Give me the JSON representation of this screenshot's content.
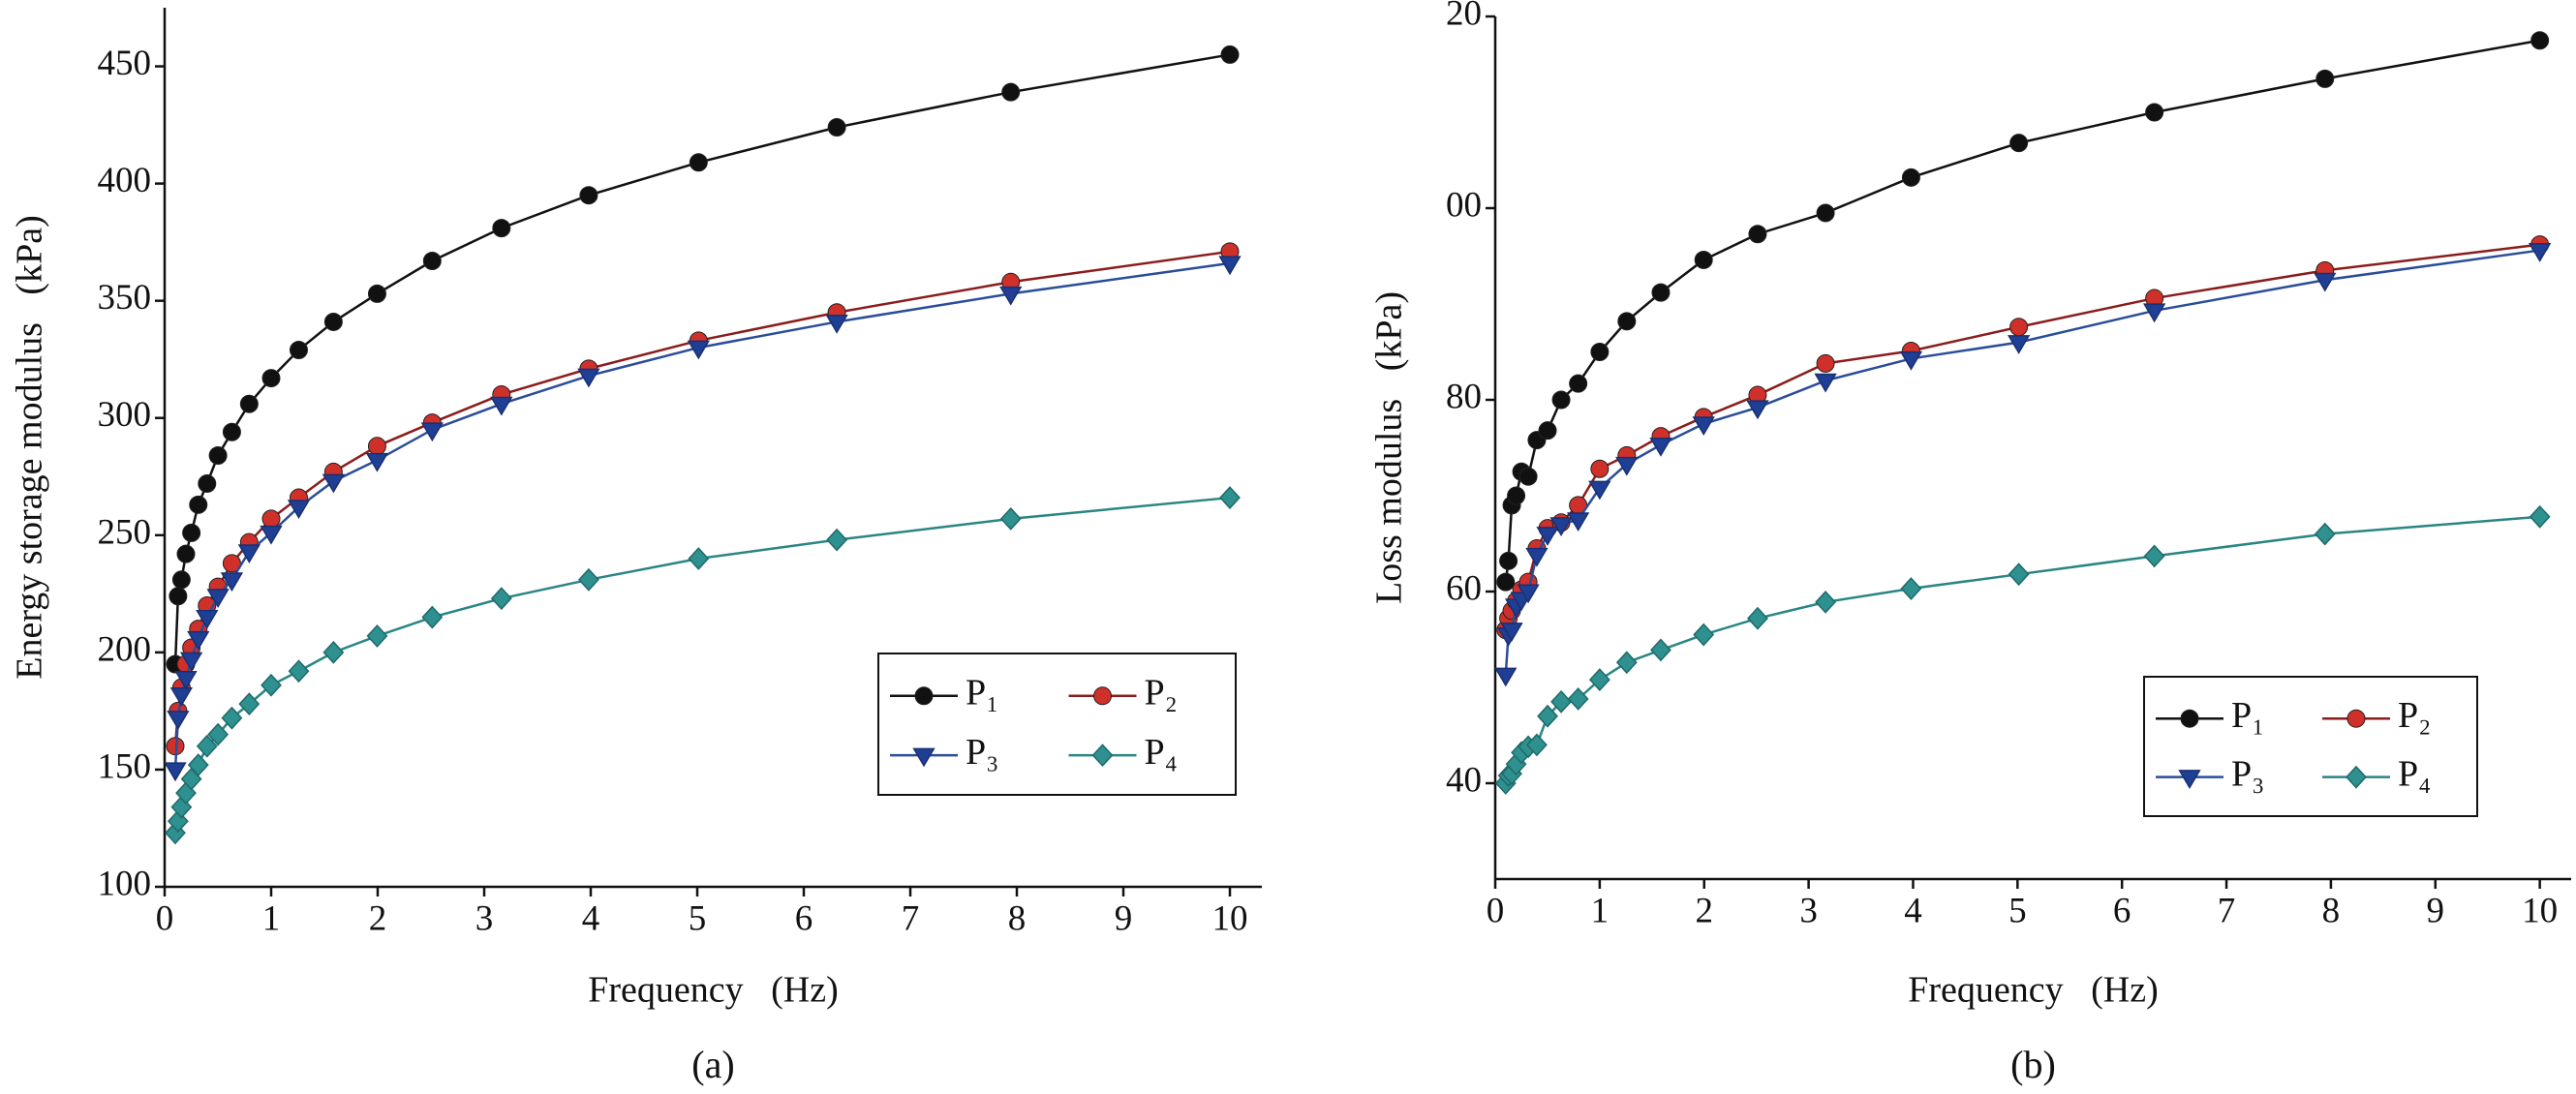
{
  "chart_data": [
    {
      "type": "line",
      "panel_label": "(a)",
      "xlabel": "Frequency   (Hz)",
      "ylabel": "Energy storage modulus   (kPa)",
      "x": [
        0.1,
        0.126,
        0.158,
        0.2,
        0.251,
        0.316,
        0.398,
        0.501,
        0.631,
        0.794,
        1,
        1.259,
        1.585,
        1.995,
        2.512,
        3.162,
        3.981,
        5.012,
        6.31,
        7.943,
        10
      ],
      "xlim": [
        0,
        10.3
      ],
      "xticks": [
        0,
        1,
        2,
        3,
        4,
        5,
        6,
        7,
        8,
        9,
        10
      ],
      "ylim": [
        100,
        475
      ],
      "yticks": [
        100,
        150,
        200,
        250,
        300,
        350,
        400,
        450
      ],
      "legend": "lower right",
      "series": [
        {
          "name": "P₁",
          "color": "#111111",
          "marker_color": "#111111",
          "marker": "circle",
          "values": [
            195,
            224,
            231,
            242,
            251,
            263,
            272,
            284,
            294,
            306,
            317,
            329,
            341,
            353,
            367,
            381,
            395,
            409,
            424,
            439,
            455
          ]
        },
        {
          "name": "P₂",
          "color": "#8b1c1c",
          "marker_color": "#d0302a",
          "marker": "circle",
          "values": [
            160,
            175,
            185,
            195,
            202,
            210,
            220,
            228,
            238,
            247,
            257,
            266,
            277,
            288,
            298,
            310,
            321,
            333,
            345,
            358,
            371
          ]
        },
        {
          "name": "P₃",
          "color": "#2a4d9a",
          "marker_color": "#1f3f95",
          "marker": "triangle-down",
          "values": [
            150,
            172,
            182,
            189,
            197,
            206,
            215,
            224,
            231,
            243,
            251,
            262,
            273,
            282,
            295,
            306,
            318,
            330,
            341,
            353,
            366
          ]
        },
        {
          "name": "P₄",
          "color": "#2a8585",
          "marker_color": "#2f9090",
          "marker": "diamond",
          "values": [
            123,
            128,
            134,
            140,
            146,
            152,
            160,
            165,
            172,
            178,
            186,
            192,
            200,
            207,
            215,
            223,
            231,
            240,
            248,
            257,
            266
          ]
        }
      ]
    },
    {
      "type": "line",
      "panel_label": "(b)",
      "xlabel": "Frequency   (Hz)",
      "ylabel": "Loss modulus   (kPa)",
      "x": [
        0.1,
        0.126,
        0.158,
        0.2,
        0.251,
        0.316,
        0.398,
        0.501,
        0.631,
        0.794,
        1,
        1.259,
        1.585,
        1.995,
        2.512,
        3.162,
        3.981,
        5.012,
        6.31,
        7.943,
        10
      ],
      "xlim": [
        0,
        10.3
      ],
      "xticks": [
        0,
        1,
        2,
        3,
        4,
        5,
        6,
        7,
        8,
        9,
        10
      ],
      "ylim": [
        30,
        120
      ],
      "yticks": [
        40,
        60,
        80,
        {
          "value": 100,
          "label": "00"
        },
        {
          "value": 120,
          "label": "20"
        }
      ],
      "legend": "lower right",
      "series": [
        {
          "name": "P₁",
          "color": "#111111",
          "marker_color": "#111111",
          "marker": "circle",
          "values": [
            61,
            63.2,
            69,
            70,
            72.5,
            72,
            75.8,
            76.8,
            80,
            81.7,
            85,
            88.2,
            91.2,
            94.6,
            97.3,
            99.5,
            103.2,
            106.8,
            110,
            113.5,
            117.5
          ]
        },
        {
          "name": "P₂",
          "color": "#8b1c1c",
          "marker_color": "#d0302a",
          "marker": "circle",
          "values": [
            56,
            57.2,
            58,
            59,
            60.2,
            61,
            64.5,
            66.6,
            67.2,
            69,
            72.8,
            74.2,
            76.2,
            78.2,
            80.5,
            83.8,
            85.1,
            87.6,
            90.6,
            93.5,
            96.2
          ]
        },
        {
          "name": "P₃",
          "color": "#2a4d9a",
          "marker_color": "#1f3f95",
          "marker": "triangle-down",
          "values": [
            51.3,
            55.5,
            56,
            58.5,
            59.2,
            60,
            63.8,
            66,
            67,
            67.5,
            70.8,
            73.3,
            75.3,
            77.5,
            79.2,
            82,
            84.3,
            86,
            89.3,
            92.5,
            95.6
          ]
        },
        {
          "name": "P₄",
          "color": "#2a8585",
          "marker_color": "#2f9090",
          "marker": "diamond",
          "values": [
            40,
            40.8,
            41,
            42,
            43.2,
            43.8,
            44,
            47,
            48.5,
            48.8,
            50.8,
            52.6,
            53.9,
            55.5,
            57.2,
            58.9,
            60.3,
            61.8,
            63.7,
            66,
            67.8
          ]
        }
      ]
    }
  ]
}
